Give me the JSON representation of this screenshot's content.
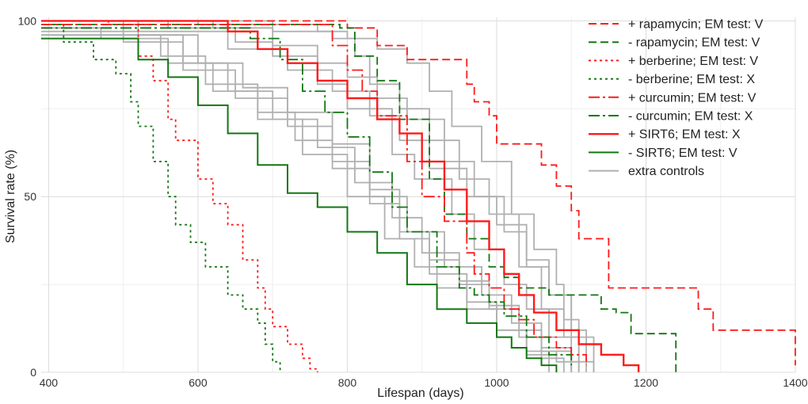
{
  "chart_data": {
    "type": "line",
    "step": true,
    "xlabel": "Lifespan (days)",
    "ylabel": "Survival rate (%)",
    "xlim": [
      390,
      1400
    ],
    "ylim": [
      0,
      101
    ],
    "xticks": [
      "400",
      "600",
      "800",
      "1000",
      "1200",
      "1400"
    ],
    "xtick_values": [
      400,
      600,
      800,
      1000,
      1200,
      1400
    ],
    "yticks": [
      "0",
      "50",
      "100"
    ],
    "ytick_values": [
      0,
      50,
      100
    ],
    "y_minor_values": [
      25,
      75
    ],
    "x_minor_values": [
      500,
      700,
      900,
      1100,
      1300
    ],
    "legend_position": "top-right",
    "colors": {
      "red": "#ff1a1a",
      "green": "#117711",
      "gray": "#b0b0b0",
      "grid": "#dcdcdc"
    },
    "series": [
      {
        "name": "extra controls",
        "legend_label": "extra controls",
        "color": "#b0b0b0",
        "dash": "solid",
        "x": [
          390,
          470,
          560,
          620,
          680,
          740,
          800,
          850,
          890,
          920,
          960,
          1000,
          1040,
          1080,
          1100
        ],
        "y": [
          98,
          95,
          88,
          80,
          72,
          62,
          50,
          38,
          30,
          24,
          18,
          12,
          6,
          3,
          0
        ]
      },
      {
        "name": "extra controls",
        "color": "#b0b0b0",
        "dash": "solid",
        "x": [
          390,
          520,
          600,
          660,
          720,
          780,
          830,
          870,
          910,
          950,
          990,
          1030,
          1060,
          1100,
          1130
        ],
        "y": [
          100,
          96,
          88,
          81,
          74,
          65,
          52,
          40,
          32,
          25,
          19,
          12,
          7,
          3,
          0
        ]
      },
      {
        "name": "extra controls",
        "color": "#b0b0b0",
        "dash": "solid",
        "x": [
          390,
          560,
          650,
          700,
          760,
          800,
          860,
          890,
          940,
          970,
          1010,
          1040,
          1070,
          1110
        ],
        "y": [
          100,
          98,
          94,
          90,
          82,
          75,
          62,
          55,
          45,
          35,
          25,
          18,
          10,
          0
        ]
      },
      {
        "name": "extra controls",
        "color": "#b0b0b0",
        "dash": "solid",
        "x": [
          390,
          600,
          700,
          780,
          810,
          830,
          870,
          910,
          950,
          990,
          1030,
          1060,
          1090,
          1100
        ],
        "y": [
          100,
          99,
          97,
          95,
          90,
          82,
          75,
          66,
          55,
          45,
          30,
          18,
          10,
          0
        ]
      },
      {
        "name": "extra controls",
        "color": "#b0b0b0",
        "dash": "solid",
        "x": [
          390,
          620,
          700,
          760,
          800,
          840,
          880,
          930,
          970,
          1010,
          1040,
          1070,
          1100,
          1120
        ],
        "y": [
          100,
          98,
          93,
          88,
          84,
          78,
          72,
          60,
          50,
          40,
          30,
          22,
          12,
          0
        ]
      },
      {
        "name": "extra controls",
        "color": "#b0b0b0",
        "dash": "solid",
        "x": [
          390,
          700,
          760,
          800,
          840,
          880,
          910,
          940,
          980,
          1020,
          1050,
          1080,
          1090,
          1110
        ],
        "y": [
          100,
          99,
          97,
          95,
          92,
          88,
          80,
          70,
          60,
          45,
          35,
          25,
          15,
          0
        ]
      },
      {
        "name": "extra controls",
        "color": "#b0b0b0",
        "dash": "solid",
        "x": [
          390,
          640,
          720,
          780,
          830,
          870,
          910,
          960,
          1000,
          1040,
          1070,
          1100,
          1130
        ],
        "y": [
          97,
          92,
          86,
          80,
          73,
          66,
          58,
          50,
          42,
          32,
          22,
          10,
          0
        ]
      },
      {
        "name": "extra controls",
        "color": "#b0b0b0",
        "dash": "solid",
        "x": [
          390,
          550,
          610,
          680,
          730,
          780,
          830,
          870,
          910,
          960,
          1000,
          1040,
          1070
        ],
        "y": [
          96,
          90,
          82,
          74,
          66,
          58,
          48,
          38,
          28,
          20,
          12,
          5,
          0
        ]
      },
      {
        "name": "extra controls",
        "color": "#b0b0b0",
        "dash": "solid",
        "x": [
          390,
          580,
          640,
          700,
          760,
          810,
          860,
          900,
          950,
          990,
          1030,
          1060,
          1090
        ],
        "y": [
          96,
          88,
          80,
          72,
          64,
          54,
          44,
          34,
          26,
          18,
          10,
          4,
          0
        ]
      },
      {
        "name": "extra controls",
        "color": "#b0b0b0",
        "dash": "solid",
        "x": [
          390,
          500,
          580,
          650,
          720,
          780,
          830,
          880,
          930,
          980,
          1020,
          1060,
          1100
        ],
        "y": [
          100,
          94,
          86,
          78,
          70,
          60,
          50,
          40,
          30,
          22,
          14,
          6,
          0
        ]
      },
      {
        "name": "+ rapamycin; EM test: V",
        "legend_label": "+ rapamycin; EM test: V",
        "color": "#ff1a1a",
        "dash": "10,5",
        "x": [
          390,
          800,
          840,
          880,
          950,
          960,
          970,
          990,
          1000,
          1050,
          1060,
          1080,
          1100,
          1110,
          1150,
          1200,
          1260,
          1270,
          1290,
          1340,
          1400
        ],
        "y": [
          100,
          98,
          93,
          89,
          89,
          82,
          77,
          73,
          65,
          65,
          59,
          53,
          46,
          38,
          24,
          24,
          24,
          18,
          12,
          12,
          2
        ]
      },
      {
        "name": "- rapamycin; EM test: V",
        "legend_label": "- rapamycin; EM test: V",
        "color": "#117711",
        "dash": "10,5",
        "x": [
          390,
          720,
          790,
          810,
          840,
          870,
          910,
          930,
          960,
          990,
          1010,
          1030,
          1070,
          1100,
          1140,
          1160,
          1180,
          1200,
          1240
        ],
        "y": [
          99,
          99,
          98,
          90,
          83,
          72,
          55,
          45,
          38,
          30,
          27,
          24,
          22,
          22,
          18,
          17,
          11,
          11,
          0
        ]
      },
      {
        "name": "+ berberine; EM test: V",
        "legend_label": "+ berberine; EM test: V",
        "color": "#ff1a1a",
        "dash": "3,4",
        "x": [
          390,
          480,
          520,
          540,
          560,
          570,
          600,
          620,
          640,
          660,
          680,
          690,
          700,
          720,
          740,
          750,
          760
        ],
        "y": [
          100,
          99,
          90,
          83,
          72,
          66,
          55,
          48,
          42,
          32,
          24,
          18,
          13,
          8,
          4,
          1,
          0
        ]
      },
      {
        "name": "- berberine; EM test: X",
        "legend_label": "- berberine; EM test: X",
        "color": "#117711",
        "dash": "3,4",
        "x": [
          390,
          420,
          460,
          490,
          510,
          520,
          540,
          560,
          570,
          590,
          610,
          640,
          660,
          680,
          690,
          700,
          710
        ],
        "y": [
          99,
          94,
          89,
          85,
          77,
          70,
          60,
          50,
          42,
          37,
          30,
          22,
          18,
          14,
          8,
          3,
          0
        ]
      },
      {
        "name": "+ curcumin; EM test: V",
        "legend_label": "+ curcumin; EM test: V",
        "color": "#ff1a1a",
        "dash": "14,4,3,4",
        "x": [
          390,
          730,
          780,
          800,
          820,
          840,
          880,
          900,
          930,
          960,
          970,
          990,
          1010,
          1030,
          1050,
          1080,
          1100,
          1120
        ],
        "y": [
          99,
          99,
          93,
          86,
          80,
          73,
          60,
          50,
          43,
          34,
          28,
          24,
          18,
          15,
          10,
          7,
          5,
          2
        ]
      },
      {
        "name": "- curcumin; EM test: X",
        "legend_label": "- curcumin; EM test: X",
        "color": "#117711",
        "dash": "14,4,3,4",
        "x": [
          390,
          610,
          670,
          710,
          740,
          770,
          800,
          830,
          860,
          880,
          920,
          950,
          970,
          990,
          1010,
          1040,
          1070,
          1100
        ],
        "y": [
          98,
          98,
          95,
          89,
          80,
          74,
          67,
          57,
          47,
          40,
          30,
          24,
          22,
          20,
          16,
          10,
          5,
          2
        ]
      },
      {
        "name": "+ SIRT6; EM test: X",
        "legend_label": "+ SIRT6; EM test: X",
        "color": "#ff1a1a",
        "dash": "solid",
        "width": 2.4,
        "x": [
          390,
          600,
          640,
          680,
          720,
          760,
          800,
          840,
          870,
          900,
          930,
          960,
          990,
          1010,
          1030,
          1050,
          1080,
          1110,
          1140,
          1170,
          1190
        ],
        "y": [
          100,
          100,
          97,
          92,
          88,
          83,
          78,
          72,
          68,
          60,
          52,
          43,
          35,
          28,
          22,
          17,
          12,
          8,
          5,
          2,
          0
        ]
      },
      {
        "name": "- SIRT6; EM test: V",
        "legend_label": "- SIRT6; EM test: V",
        "color": "#117711",
        "dash": "solid",
        "width": 2.0,
        "x": [
          390,
          470,
          520,
          560,
          600,
          640,
          680,
          720,
          760,
          800,
          840,
          880,
          920,
          960,
          1000,
          1020,
          1040,
          1060,
          1080
        ],
        "y": [
          95,
          95,
          89,
          84,
          76,
          68,
          59,
          51,
          47,
          40,
          34,
          25,
          18,
          14,
          10,
          7,
          4,
          2,
          0
        ]
      }
    ]
  }
}
